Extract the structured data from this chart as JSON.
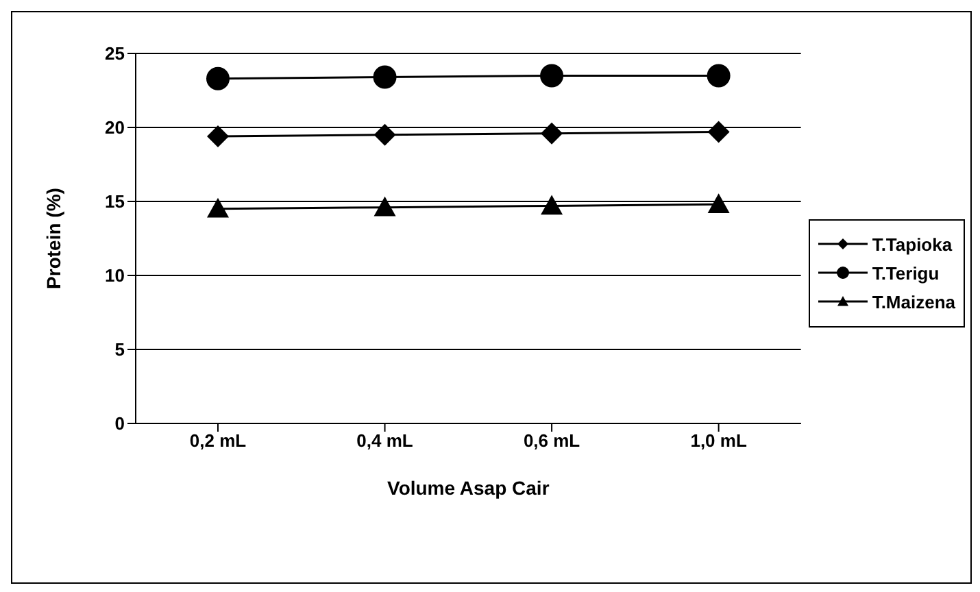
{
  "chart_data": {
    "type": "line",
    "xlabel": "Volume Asap Cair",
    "ylabel": "Protein (%)",
    "categories": [
      "0,2 mL",
      "0,4 mL",
      "0,6 mL",
      "1,0 mL"
    ],
    "ylim": [
      0,
      25
    ],
    "yticks": [
      0,
      5,
      10,
      15,
      20,
      25
    ],
    "grid": "y",
    "legend": "right",
    "series": [
      {
        "name": "T.Tapioka",
        "color": "#000000",
        "marker": "diamond",
        "values": [
          19.4,
          19.5,
          19.6,
          19.7
        ]
      },
      {
        "name": "T.Terigu",
        "color": "#000000",
        "marker": "circle",
        "values": [
          23.3,
          23.4,
          23.5,
          23.5
        ]
      },
      {
        "name": "T.Maizena",
        "color": "#000000",
        "marker": "triangle",
        "values": [
          14.5,
          14.6,
          14.7,
          14.8
        ]
      }
    ]
  }
}
